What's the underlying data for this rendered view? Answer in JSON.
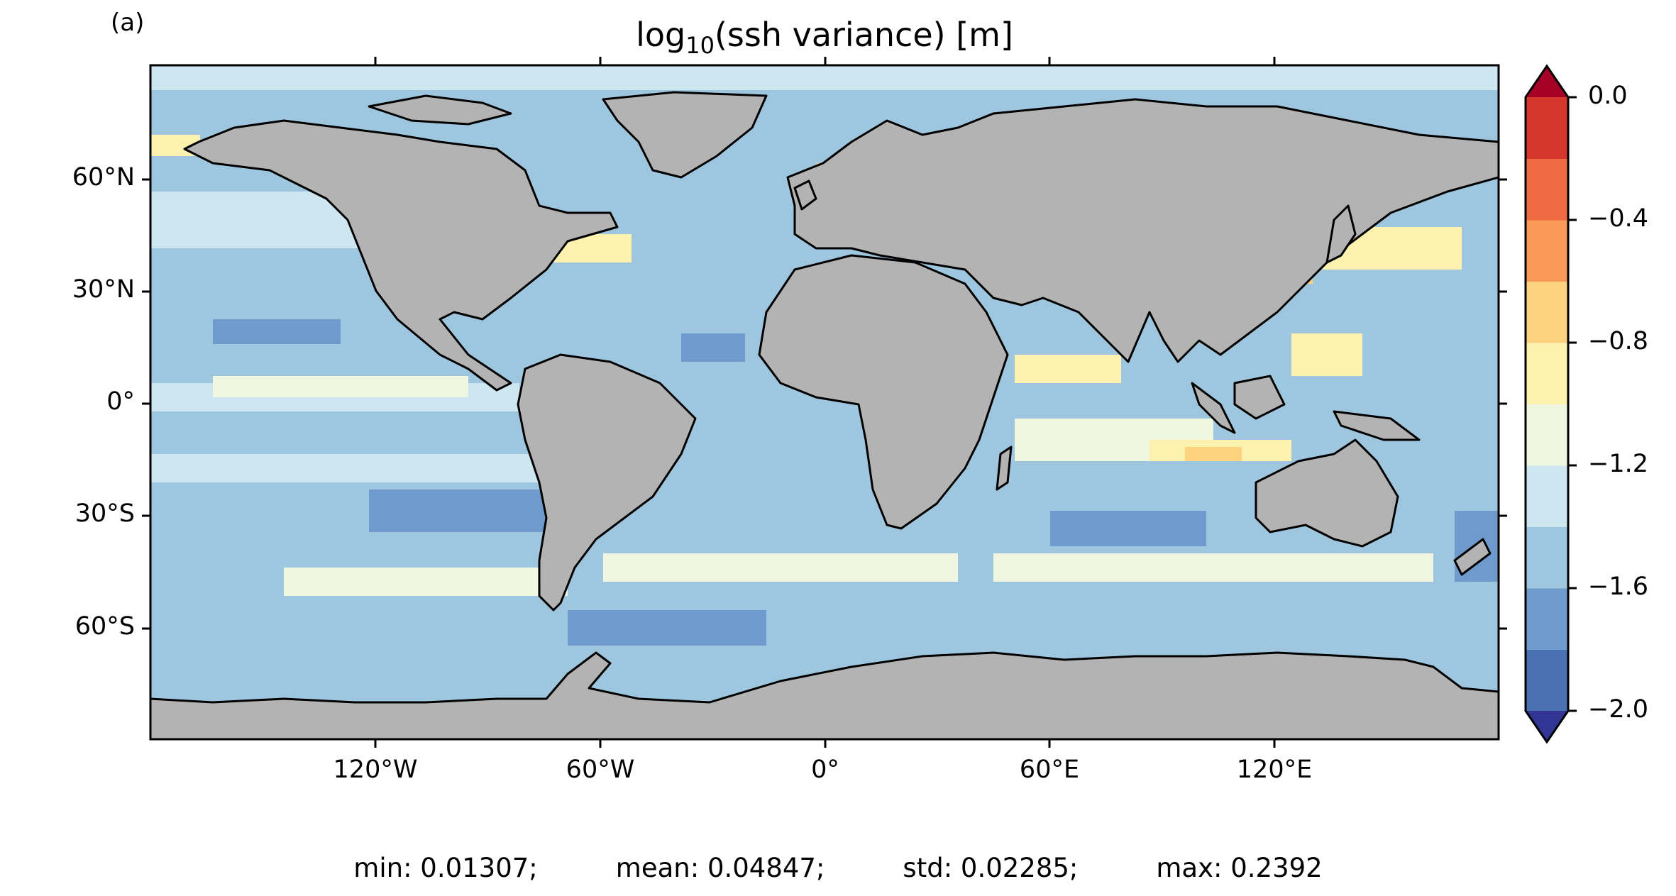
{
  "panel_label": "(a)",
  "title": {
    "prefix": "log",
    "subscript": "10",
    "suffix": "(ssh variance) [m]"
  },
  "axes": {
    "lat_ticks": [
      "60°N",
      "30°N",
      "0°",
      "30°S",
      "60°S"
    ],
    "lon_ticks": [
      "120°W",
      "60°W",
      "0°",
      "60°E",
      "120°E"
    ]
  },
  "colorbar": {
    "ticks": [
      "0.0",
      "−0.4",
      "−0.8",
      "−1.2",
      "−1.6",
      "−2.0"
    ],
    "tick_values": [
      0.0,
      -0.4,
      -0.8,
      -1.2,
      -1.6,
      -2.0
    ],
    "range": [
      -2.0,
      0.0
    ],
    "levels": [
      -2.0,
      -1.8,
      -1.6,
      -1.4,
      -1.2,
      -1.0,
      -0.8,
      -0.6,
      -0.4,
      -0.2,
      0.0
    ],
    "colors": [
      "#4a72b3",
      "#6e9bcb",
      "#9fc6df",
      "#cde6f0",
      "#eff7e0",
      "#fdf1b0",
      "#fcd27f",
      "#f99a58",
      "#ef6a43",
      "#d6372c"
    ],
    "under_color": "#313695",
    "over_color": "#a50026",
    "land_color": "#b3b3b3"
  },
  "stats": {
    "min": "min: 0.01307;",
    "mean": "mean: 0.04847;",
    "std": "std: 0.02285;",
    "max": "max: 0.2392"
  }
}
